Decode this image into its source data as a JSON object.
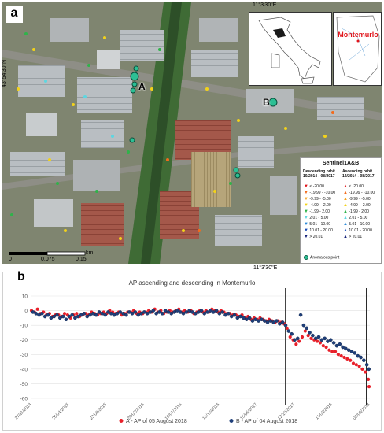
{
  "map": {
    "panel_label": "a",
    "coords": {
      "top_lon": "11°3'30\"E",
      "bottom_lon": "11°3'30\"E",
      "left_lat": "43°54'30\"N"
    },
    "inset_label": "Montemurlo",
    "points": {
      "a": "A",
      "b": "B"
    },
    "legend": {
      "title": "Sentinel1A&B",
      "descending_heading": "Descending orbit 10/2014 - 08/2017",
      "ascending_heading": "Ascending orbit 12/2014 - 08/2017",
      "classes": [
        {
          "label": "< -20.00",
          "color": "#e0151b"
        },
        {
          "label": "-19.99 - -10.00",
          "color": "#f26b1d"
        },
        {
          "label": "-9.99 - -5.00",
          "color": "#f7a21b"
        },
        {
          "label": "-4.99 - -2.00",
          "color": "#f2d21a"
        },
        {
          "label": "-1.99 - 2.00",
          "color": "#2fb34a"
        },
        {
          "label": "2.01 - 5.00",
          "color": "#5ed6e0"
        },
        {
          "label": "5.01 - 10.00",
          "color": "#2e8bd8"
        },
        {
          "label": "10.01 - 20.00",
          "color": "#1d4fb8"
        },
        {
          "label": "> 20.01",
          "color": "#16237a"
        }
      ],
      "anomalous_label": "Anomalous point"
    },
    "scalebar": {
      "ticks": [
        "0",
        "0.075",
        "0.15"
      ],
      "unit": "km"
    }
  },
  "chart": {
    "panel_label": "b",
    "chart_data": {
      "type": "scatter",
      "title": "AP ascending and descending in Montemurlo",
      "xlabel": "",
      "ylabel": "",
      "ylim": [
        -60,
        10
      ],
      "yticks": [
        10,
        0,
        -10,
        -20,
        -30,
        -40,
        -50,
        -60
      ],
      "xticks": [
        "27/11/2014",
        "26/04/2015",
        "23/09/2015",
        "20/02/2016",
        "19/07/2016",
        "16/12/2016",
        "15/05/2017",
        "12/10/2017",
        "11/03/2018",
        "08/08/2018"
      ],
      "xlim": [
        "2014-11-27",
        "2018-08-08"
      ],
      "vlines": [
        "2017-09-05",
        "2018-07-25"
      ],
      "grid": true,
      "legend_position": "bottom",
      "series": [
        {
          "name": "A - AP of 05 August 2018",
          "color": "#e8202a",
          "points": [
            [
              "2014-11-27",
              0
            ],
            [
              "2014-12-09",
              -1
            ],
            [
              "2014-12-21",
              1
            ],
            [
              "2015-01-02",
              -2
            ],
            [
              "2015-01-14",
              -1
            ],
            [
              "2015-01-26",
              -3
            ],
            [
              "2015-02-07",
              -2
            ],
            [
              "2015-02-19",
              -4
            ],
            [
              "2015-03-03",
              -3
            ],
            [
              "2015-03-15",
              -3
            ],
            [
              "2015-03-27",
              -4
            ],
            [
              "2015-04-08",
              -2
            ],
            [
              "2015-04-20",
              -3
            ],
            [
              "2015-05-02",
              -5
            ],
            [
              "2015-05-14",
              -3
            ],
            [
              "2015-05-26",
              -2
            ],
            [
              "2015-06-07",
              -4
            ],
            [
              "2015-06-19",
              -3
            ],
            [
              "2015-07-01",
              -2
            ],
            [
              "2015-07-13",
              -3
            ],
            [
              "2015-07-25",
              -1
            ],
            [
              "2015-08-06",
              -2
            ],
            [
              "2015-08-18",
              -3
            ],
            [
              "2015-08-30",
              -2
            ],
            [
              "2015-09-11",
              -1
            ],
            [
              "2015-09-23",
              -2
            ],
            [
              "2015-10-05",
              0
            ],
            [
              "2015-10-17",
              -1
            ],
            [
              "2015-10-29",
              -2
            ],
            [
              "2015-11-10",
              -1
            ],
            [
              "2015-11-22",
              -3
            ],
            [
              "2015-12-04",
              -2
            ],
            [
              "2015-12-16",
              -1
            ],
            [
              "2015-12-28",
              -1
            ],
            [
              "2016-01-09",
              0
            ],
            [
              "2016-01-21",
              -2
            ],
            [
              "2016-02-02",
              -1
            ],
            [
              "2016-02-14",
              -2
            ],
            [
              "2016-02-26",
              -1
            ],
            [
              "2016-03-09",
              0
            ],
            [
              "2016-03-21",
              -1
            ],
            [
              "2016-04-02",
              1
            ],
            [
              "2016-04-14",
              -1
            ],
            [
              "2016-04-26",
              0
            ],
            [
              "2016-05-08",
              -2
            ],
            [
              "2016-05-20",
              -1
            ],
            [
              "2016-06-01",
              0
            ],
            [
              "2016-06-13",
              -1
            ],
            [
              "2016-06-25",
              0
            ],
            [
              "2016-07-07",
              1
            ],
            [
              "2016-07-19",
              -1
            ],
            [
              "2016-07-31",
              0
            ],
            [
              "2016-08-12",
              -1
            ],
            [
              "2016-08-24",
              0
            ],
            [
              "2016-09-05",
              -2
            ],
            [
              "2016-09-17",
              -1
            ],
            [
              "2016-09-29",
              0
            ],
            [
              "2016-10-11",
              -1
            ],
            [
              "2016-10-23",
              0
            ],
            [
              "2016-11-04",
              -1
            ],
            [
              "2016-11-16",
              1
            ],
            [
              "2016-11-28",
              0
            ],
            [
              "2016-12-10",
              -1
            ],
            [
              "2016-12-22",
              0
            ],
            [
              "2017-01-03",
              -1
            ],
            [
              "2017-01-15",
              -2
            ],
            [
              "2017-01-27",
              -2
            ],
            [
              "2017-02-08",
              -3
            ],
            [
              "2017-02-20",
              -3
            ],
            [
              "2017-03-04",
              -4
            ],
            [
              "2017-03-16",
              -3
            ],
            [
              "2017-03-28",
              -5
            ],
            [
              "2017-04-09",
              -4
            ],
            [
              "2017-04-21",
              -6
            ],
            [
              "2017-05-03",
              -5
            ],
            [
              "2017-05-15",
              -6
            ],
            [
              "2017-05-27",
              -5
            ],
            [
              "2017-06-08",
              -6
            ],
            [
              "2017-06-20",
              -7
            ],
            [
              "2017-07-02",
              -6
            ],
            [
              "2017-07-14",
              -7
            ],
            [
              "2017-07-26",
              -8
            ],
            [
              "2017-08-07",
              -7
            ],
            [
              "2017-08-19",
              -8
            ],
            [
              "2017-08-31",
              -9
            ],
            [
              "2017-09-12",
              -12
            ],
            [
              "2017-09-24",
              -18
            ],
            [
              "2017-10-06",
              -20
            ],
            [
              "2017-10-18",
              -23
            ],
            [
              "2017-10-30",
              -21
            ],
            [
              "2017-11-11",
              -18
            ],
            [
              "2017-11-23",
              -14
            ],
            [
              "2017-12-05",
              -17
            ],
            [
              "2017-12-17",
              -19
            ],
            [
              "2017-12-29",
              -20
            ],
            [
              "2018-01-10",
              -21
            ],
            [
              "2018-01-22",
              -22
            ],
            [
              "2018-02-03",
              -24
            ],
            [
              "2018-02-15",
              -25
            ],
            [
              "2018-02-27",
              -27
            ],
            [
              "2018-03-11",
              -28
            ],
            [
              "2018-03-23",
              -28
            ],
            [
              "2018-04-04",
              -30
            ],
            [
              "2018-04-16",
              -31
            ],
            [
              "2018-04-28",
              -32
            ],
            [
              "2018-05-10",
              -33
            ],
            [
              "2018-05-22",
              -34
            ],
            [
              "2018-06-03",
              -36
            ],
            [
              "2018-06-15",
              -37
            ],
            [
              "2018-06-27",
              -38
            ],
            [
              "2018-07-09",
              -40
            ],
            [
              "2018-07-21",
              -42
            ],
            [
              "2018-08-02",
              -47
            ],
            [
              "2018-08-05",
              -52
            ]
          ]
        },
        {
          "name": "B - AP of 04 August 2018",
          "color": "#1f3f7a",
          "points": [
            [
              "2014-12-03",
              -1
            ],
            [
              "2014-12-15",
              -2
            ],
            [
              "2014-12-27",
              -3
            ],
            [
              "2015-01-08",
              -2
            ],
            [
              "2015-01-20",
              -4
            ],
            [
              "2015-02-01",
              -3
            ],
            [
              "2015-02-13",
              -5
            ],
            [
              "2015-02-25",
              -4
            ],
            [
              "2015-03-09",
              -3
            ],
            [
              "2015-03-21",
              -5
            ],
            [
              "2015-04-02",
              -4
            ],
            [
              "2015-04-14",
              -6
            ],
            [
              "2015-04-26",
              -4
            ],
            [
              "2015-05-08",
              -3
            ],
            [
              "2015-05-20",
              -5
            ],
            [
              "2015-06-01",
              -4
            ],
            [
              "2015-06-13",
              -3
            ],
            [
              "2015-06-25",
              -2
            ],
            [
              "2015-07-07",
              -4
            ],
            [
              "2015-07-19",
              -3
            ],
            [
              "2015-07-31",
              -2
            ],
            [
              "2015-08-12",
              -3
            ],
            [
              "2015-08-24",
              -1
            ],
            [
              "2015-09-05",
              -2
            ],
            [
              "2015-09-17",
              -3
            ],
            [
              "2015-09-29",
              -1
            ],
            [
              "2015-10-11",
              -2
            ],
            [
              "2015-10-23",
              -3
            ],
            [
              "2015-11-04",
              -2
            ],
            [
              "2015-11-16",
              -1
            ],
            [
              "2015-11-28",
              -2
            ],
            [
              "2015-12-10",
              -3
            ],
            [
              "2015-12-22",
              -1
            ],
            [
              "2016-01-03",
              -2
            ],
            [
              "2016-01-15",
              -1
            ],
            [
              "2016-01-27",
              -3
            ],
            [
              "2016-02-08",
              -2
            ],
            [
              "2016-02-20",
              -1
            ],
            [
              "2016-03-03",
              -2
            ],
            [
              "2016-03-15",
              -1
            ],
            [
              "2016-03-27",
              0
            ],
            [
              "2016-04-08",
              -2
            ],
            [
              "2016-04-20",
              -1
            ],
            [
              "2016-05-02",
              -2
            ],
            [
              "2016-05-14",
              0
            ],
            [
              "2016-05-26",
              -1
            ],
            [
              "2016-06-07",
              -2
            ],
            [
              "2016-06-19",
              -1
            ],
            [
              "2016-07-01",
              0
            ],
            [
              "2016-07-13",
              -1
            ],
            [
              "2016-07-25",
              -2
            ],
            [
              "2016-08-06",
              -1
            ],
            [
              "2016-08-18",
              0
            ],
            [
              "2016-08-30",
              -1
            ],
            [
              "2016-09-11",
              -2
            ],
            [
              "2016-09-23",
              -1
            ],
            [
              "2016-10-05",
              0
            ],
            [
              "2016-10-17",
              -2
            ],
            [
              "2016-10-29",
              -1
            ],
            [
              "2016-11-10",
              0
            ],
            [
              "2016-11-22",
              -1
            ],
            [
              "2016-12-04",
              0
            ],
            [
              "2016-12-16",
              -2
            ],
            [
              "2016-12-28",
              -1
            ],
            [
              "2017-01-09",
              -3
            ],
            [
              "2017-01-21",
              -2
            ],
            [
              "2017-02-02",
              -4
            ],
            [
              "2017-02-14",
              -3
            ],
            [
              "2017-02-26",
              -5
            ],
            [
              "2017-03-10",
              -4
            ],
            [
              "2017-03-22",
              -5
            ],
            [
              "2017-04-03",
              -6
            ],
            [
              "2017-04-15",
              -5
            ],
            [
              "2017-04-27",
              -7
            ],
            [
              "2017-05-09",
              -6
            ],
            [
              "2017-05-21",
              -7
            ],
            [
              "2017-06-02",
              -6
            ],
            [
              "2017-06-14",
              -7
            ],
            [
              "2017-06-26",
              -8
            ],
            [
              "2017-07-08",
              -7
            ],
            [
              "2017-07-20",
              -8
            ],
            [
              "2017-08-01",
              -7
            ],
            [
              "2017-08-13",
              -9
            ],
            [
              "2017-08-25",
              -8
            ],
            [
              "2017-09-06",
              -10
            ],
            [
              "2017-09-18",
              -14
            ],
            [
              "2017-09-30",
              -16
            ],
            [
              "2017-10-12",
              -20
            ],
            [
              "2017-10-24",
              -19
            ],
            [
              "2017-11-05",
              -3
            ],
            [
              "2017-11-17",
              -10
            ],
            [
              "2017-11-29",
              -12
            ],
            [
              "2017-12-11",
              -15
            ],
            [
              "2017-12-23",
              -17
            ],
            [
              "2018-01-04",
              -19
            ],
            [
              "2018-01-16",
              -18
            ],
            [
              "2018-01-28",
              -20
            ],
            [
              "2018-02-09",
              -19
            ],
            [
              "2018-02-21",
              -21
            ],
            [
              "2018-03-05",
              -20
            ],
            [
              "2018-03-17",
              -22
            ],
            [
              "2018-03-29",
              -24
            ],
            [
              "2018-04-10",
              -23
            ],
            [
              "2018-04-22",
              -25
            ],
            [
              "2018-05-04",
              -26
            ],
            [
              "2018-05-16",
              -27
            ],
            [
              "2018-05-28",
              -28
            ],
            [
              "2018-06-09",
              -29
            ],
            [
              "2018-06-21",
              -31
            ],
            [
              "2018-07-03",
              -32
            ],
            [
              "2018-07-15",
              -34
            ],
            [
              "2018-07-27",
              -37
            ],
            [
              "2018-08-04",
              -40
            ]
          ]
        }
      ]
    }
  }
}
